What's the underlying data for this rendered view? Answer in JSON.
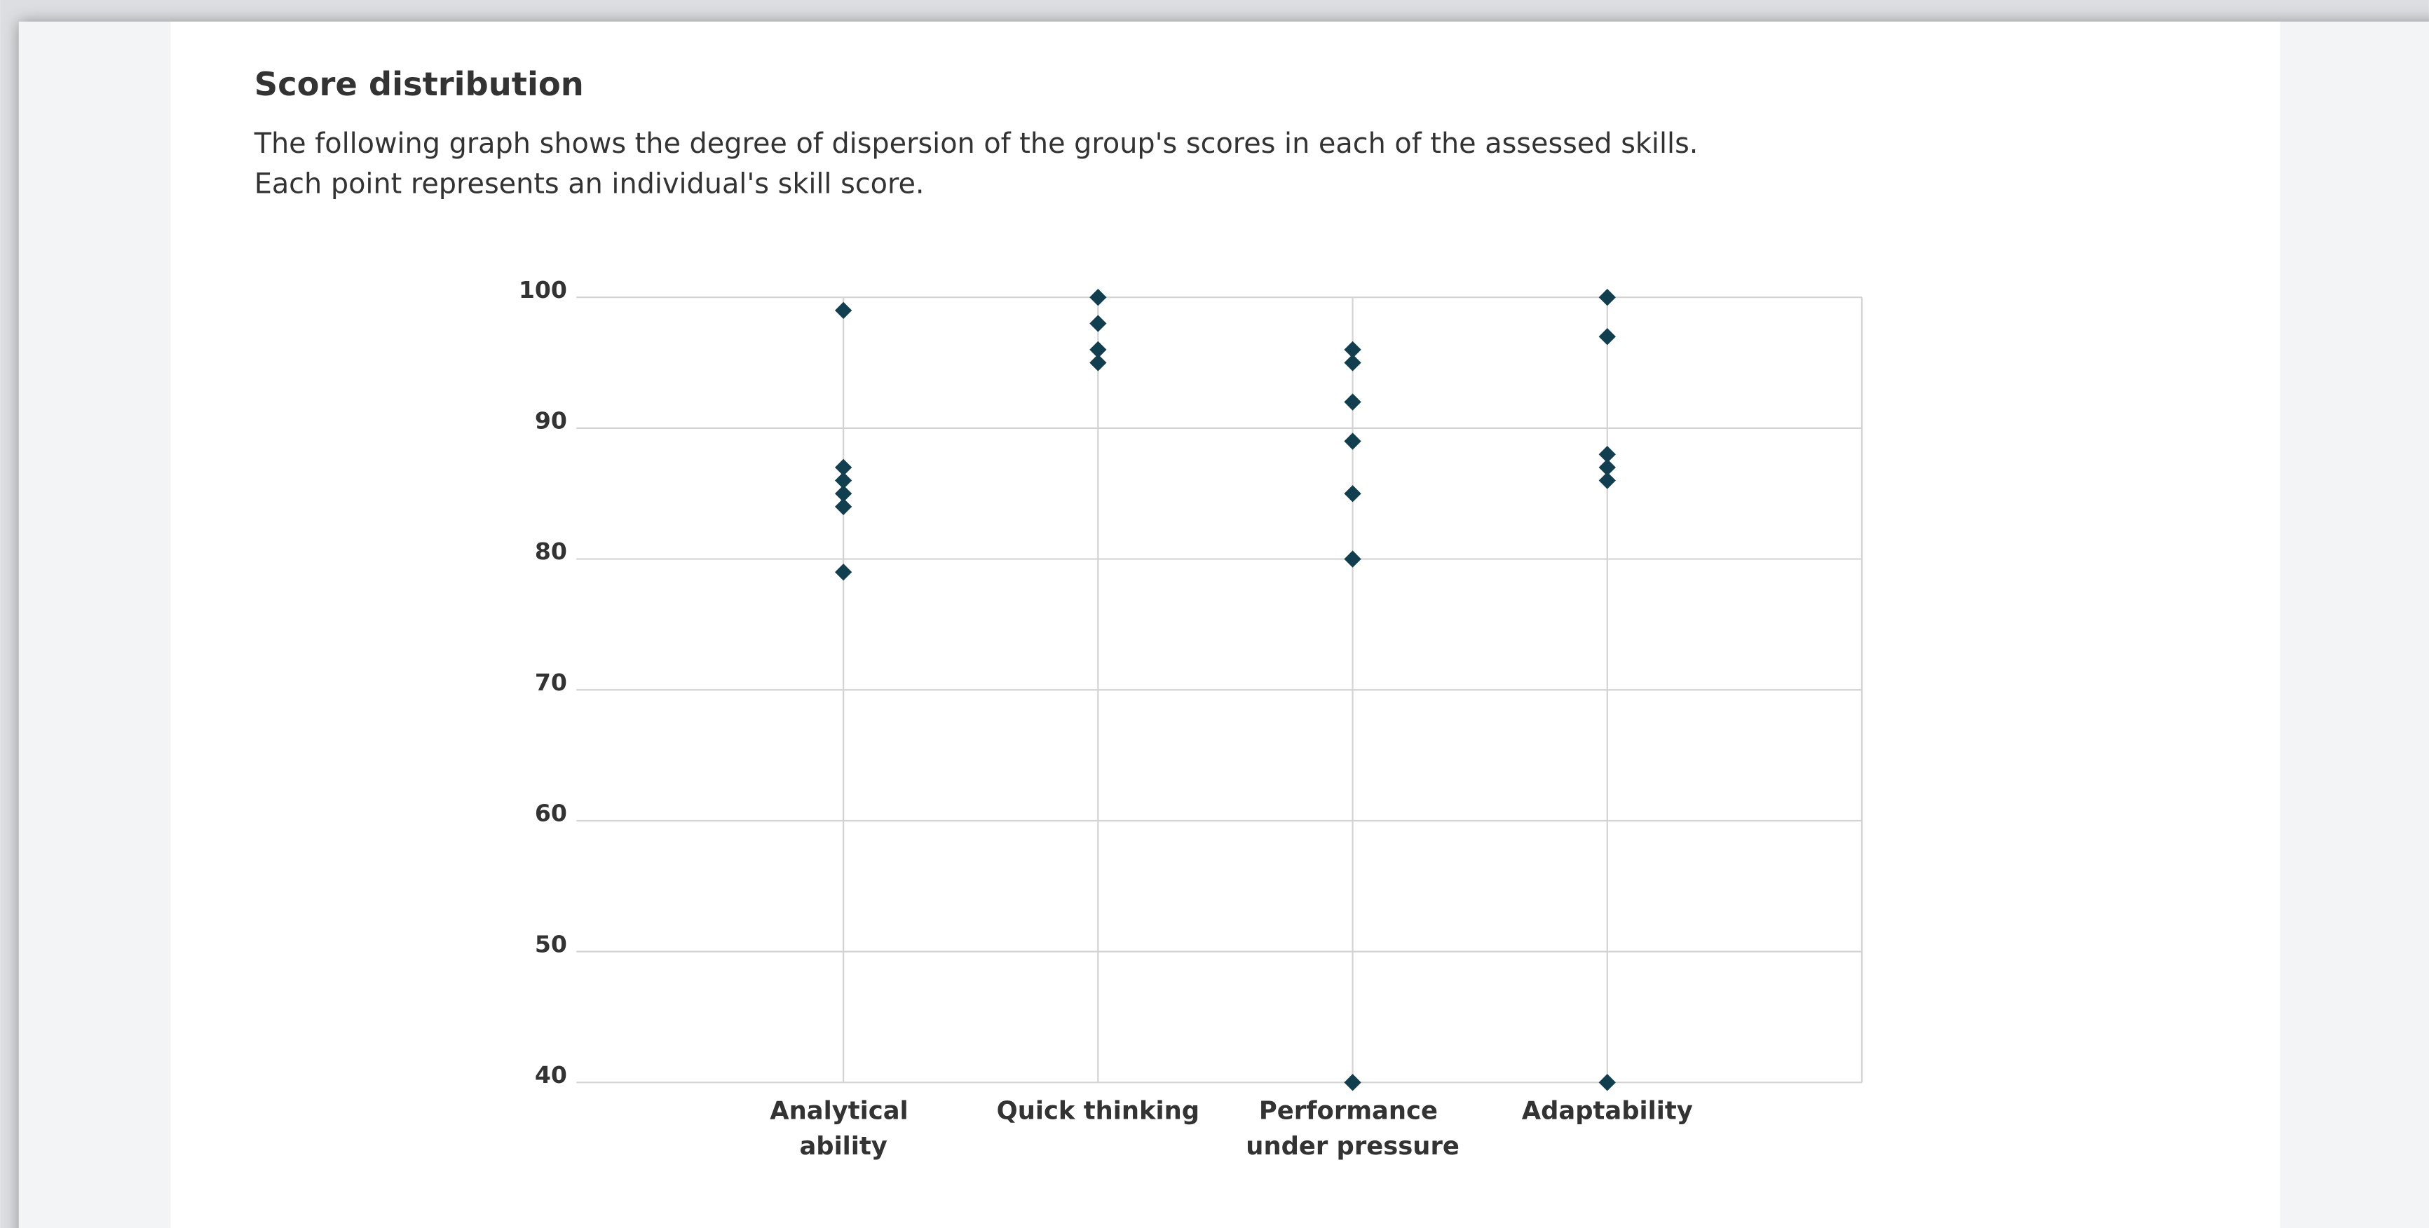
{
  "header": {
    "title": "Score distribution",
    "description": [
      "The following graph shows the degree of dispersion of the group's scores in each of the assessed skills.",
      "Each point represents an individual's skill score."
    ]
  },
  "chart_data": {
    "type": "scatter",
    "color": "#123f50",
    "grid": true,
    "categories": [
      "Analytical ability",
      "Quick thinking",
      "Performance under pressure",
      "Adaptability"
    ],
    "values": [
      [
        99,
        87,
        86,
        85,
        84,
        79
      ],
      [
        100,
        98,
        96,
        95
      ],
      [
        96,
        95,
        92,
        89,
        85,
        80,
        40
      ],
      [
        100,
        97,
        88,
        87,
        86,
        40
      ]
    ],
    "ylim": [
      40,
      100
    ],
    "yticks": [
      40,
      50,
      60,
      70,
      80,
      90,
      100
    ]
  }
}
